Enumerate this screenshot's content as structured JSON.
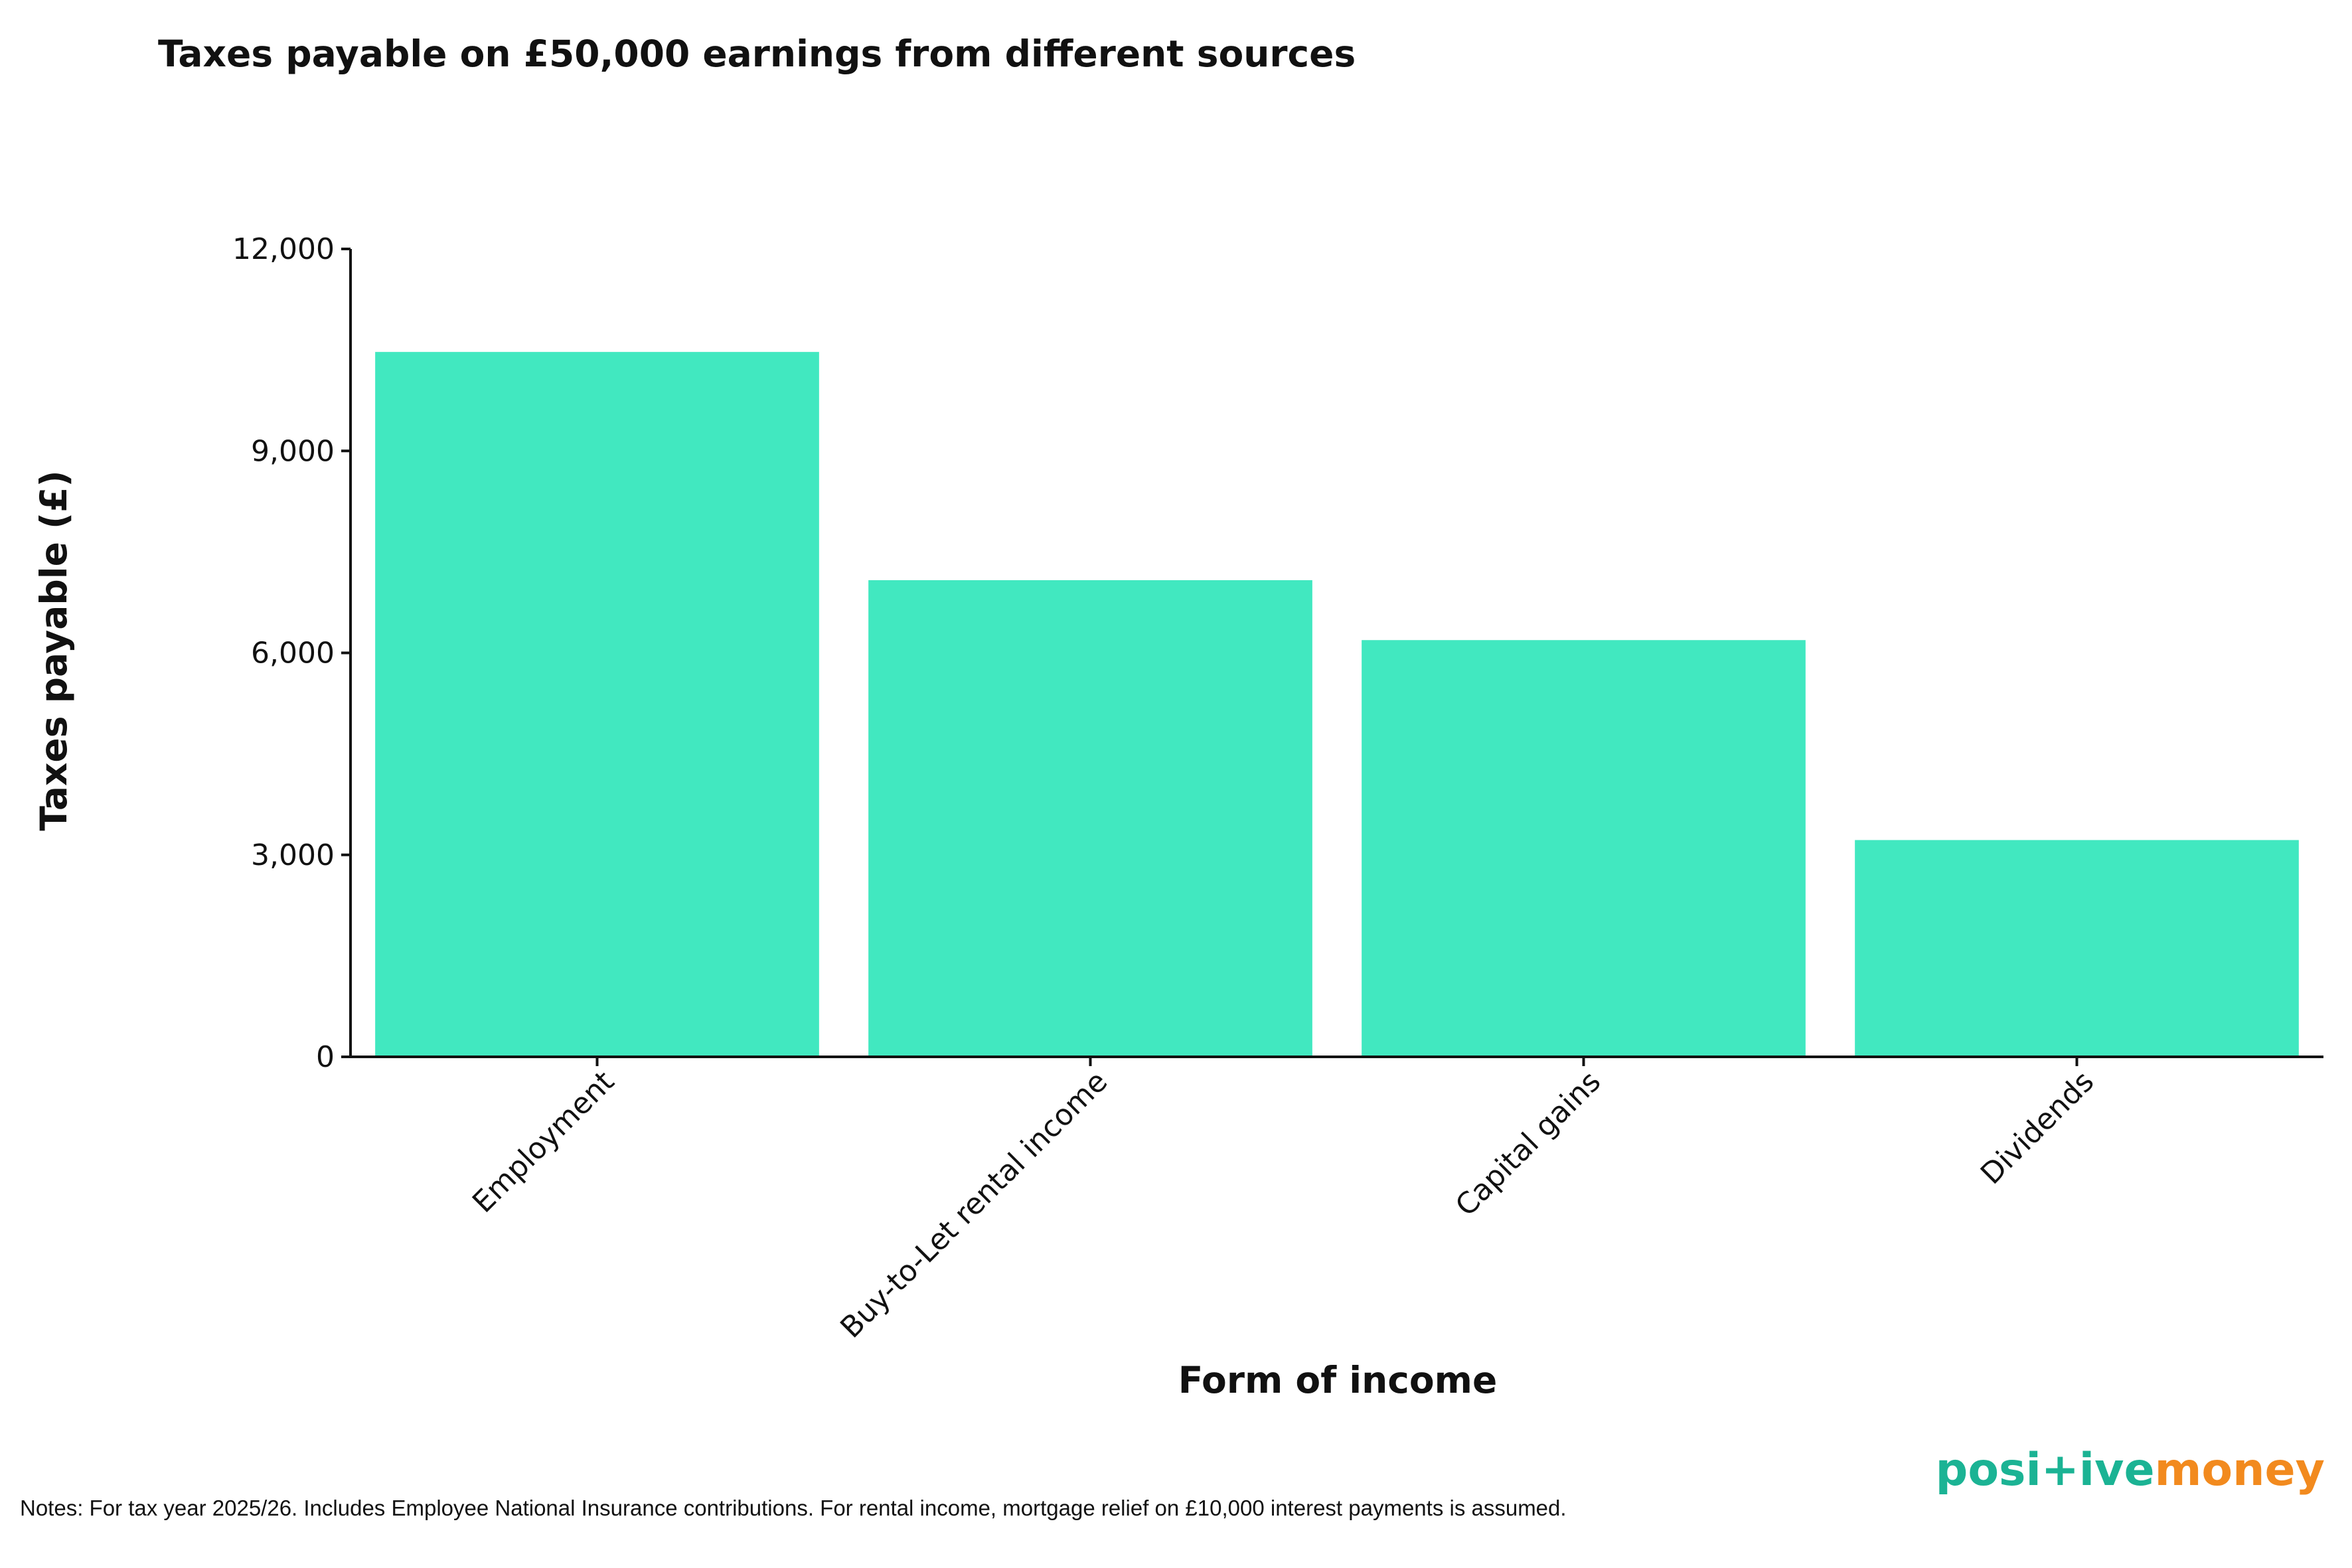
{
  "chart_data": {
    "type": "bar",
    "title": "Taxes payable on £50,000 earnings from different sources",
    "xlabel": "Form of income",
    "ylabel": "Taxes payable (£)",
    "categories": [
      "Employment",
      "Buy-to-Let rental income",
      "Capital gains",
      "Dividends"
    ],
    "values": [
      10470,
      7080,
      6190,
      3220
    ],
    "ylim": [
      0,
      12000
    ],
    "yticks": [
      0,
      3000,
      6000,
      9000,
      12000
    ],
    "ytick_labels": [
      "0",
      "3,000",
      "6,000",
      "9,000",
      "12,000"
    ],
    "grid": false,
    "legend": "none",
    "bar_color": "#41E8C0"
  },
  "notes": "Notes: For tax year 2025/26. Includes Employee National Insurance contributions. For rental income, mortgage relief on £10,000 interest payments is assumed.",
  "logo": {
    "part1": "posi+ive",
    "part2": "money",
    "color1": "#1BB394",
    "color2": "#F28A1E"
  }
}
